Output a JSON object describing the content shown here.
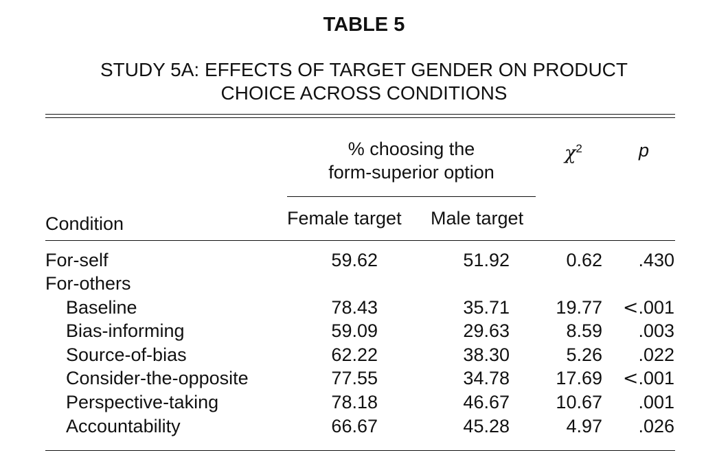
{
  "title": "TABLE 5",
  "subtitle_lines": [
    "STUDY 5A: EFFECTS OF TARGET GENDER ON PRODUCT",
    "CHOICE ACROSS CONDITIONS"
  ],
  "header": {
    "group_line1": "% choosing the",
    "group_line2": "form-superior option",
    "chi_symbol": "χ",
    "chi_sup": "2",
    "p": "p",
    "condition": "Condition",
    "female": "Female target",
    "male": "Male target"
  },
  "rows": [
    {
      "label": "For-self",
      "female": "59.62",
      "male": "51.92",
      "chi": "0.62",
      "p_prefix": "",
      "p": ".430"
    },
    {
      "label": "For-others",
      "female": "",
      "male": "",
      "chi": "",
      "p_prefix": "",
      "p": ""
    },
    {
      "label": "Baseline",
      "female": "78.43",
      "male": "35.71",
      "chi": "19.77",
      "p_prefix": "<",
      "p": ".001"
    },
    {
      "label": "Bias-informing",
      "female": "59.09",
      "male": "29.63",
      "chi": "8.59",
      "p_prefix": "",
      "p": ".003"
    },
    {
      "label": "Source-of-bias",
      "female": "62.22",
      "male": "38.30",
      "chi": "5.26",
      "p_prefix": "",
      "p": ".022"
    },
    {
      "label": "Consider-the-opposite",
      "female": "77.55",
      "male": "34.78",
      "chi": "17.69",
      "p_prefix": "<",
      "p": ".001"
    },
    {
      "label": "Perspective-taking",
      "female": "78.18",
      "male": "46.67",
      "chi": "10.67",
      "p_prefix": "",
      "p": ".001"
    },
    {
      "label": "Accountability",
      "female": "66.67",
      "male": "45.28",
      "chi": "4.97",
      "p_prefix": "",
      "p": ".026"
    }
  ]
}
